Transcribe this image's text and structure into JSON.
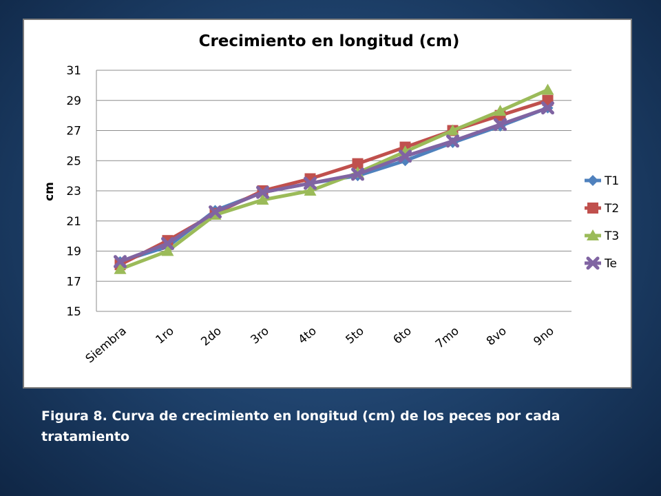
{
  "chart_data": {
    "type": "line",
    "title": "Crecimiento en longitud (cm)",
    "xlabel": "",
    "ylabel": "cm",
    "categories": [
      "Siembra",
      "1ro",
      "2do",
      "3ro",
      "4to",
      "5to",
      "6to",
      "7mo",
      "8vo",
      "9no"
    ],
    "ylim": [
      15,
      31
    ],
    "yticks": [
      "15",
      "17",
      "19",
      "21",
      "23",
      "25",
      "27",
      "29",
      "31"
    ],
    "grid": true,
    "legend_position": "right",
    "series": [
      {
        "name": "T1",
        "color": "#4f81bd",
        "marker": "diamond",
        "values": [
          18.3,
          19.3,
          21.7,
          22.9,
          23.5,
          24.0,
          25.0,
          26.2,
          27.3,
          28.5
        ]
      },
      {
        "name": "T2",
        "color": "#c0504d",
        "marker": "square",
        "values": [
          18.1,
          19.7,
          21.5,
          23.0,
          23.8,
          24.8,
          25.9,
          27.0,
          28.0,
          29.0
        ]
      },
      {
        "name": "T3",
        "color": "#9bbb59",
        "marker": "triangle",
        "values": [
          17.8,
          19.0,
          21.4,
          22.4,
          23.0,
          24.2,
          25.6,
          27.0,
          28.3,
          29.7
        ]
      },
      {
        "name": "Te",
        "color": "#8064a2",
        "marker": "x",
        "values": [
          18.3,
          19.5,
          21.6,
          22.9,
          23.5,
          24.1,
          25.3,
          26.3,
          27.4,
          28.5
        ]
      }
    ]
  },
  "caption": "Figura 8. Curva de crecimiento en longitud (cm) de los peces por cada tratamiento"
}
